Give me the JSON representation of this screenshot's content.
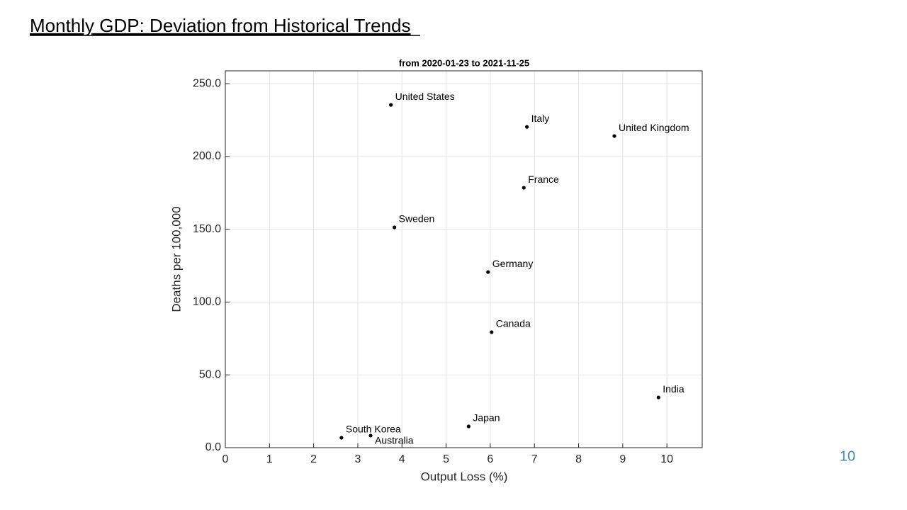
{
  "slide_title": "Monthly GDP: Deviation from Historical Trends",
  "page_number": "10",
  "chart_data": {
    "type": "scatter",
    "title": "from 2020-01-23 to 2021-11-25",
    "x_label": "Output Loss (%)",
    "y_label": "Deaths per 100,000",
    "labels": [
      "United States",
      "Italy",
      "United Kingdom",
      "France",
      "Sweden",
      "Germany",
      "Canada",
      "India",
      "Japan",
      "South Korea",
      "Australia"
    ],
    "x": [
      3.75,
      6.83,
      8.81,
      6.76,
      3.83,
      5.95,
      6.03,
      9.81,
      5.51,
      2.63,
      3.29
    ],
    "y": [
      235.4,
      220.3,
      214.0,
      178.5,
      151.3,
      120.6,
      79.3,
      34.5,
      14.6,
      6.8,
      8.3
    ],
    "color": "#000000",
    "xlim": [
      0,
      10.8
    ],
    "ylim": [
      0,
      258.8
    ],
    "xticks": [
      0,
      1,
      2,
      3,
      4,
      5,
      6,
      7,
      8,
      9,
      10
    ],
    "yticks": [
      {
        "value": 0,
        "label": "0.0"
      },
      {
        "value": 50,
        "label": "50.0"
      },
      {
        "value": 100,
        "label": "100.0"
      },
      {
        "value": 150,
        "label": "150.0"
      },
      {
        "value": 200,
        "label": "200.0"
      },
      {
        "value": 250,
        "label": "250.0"
      }
    ],
    "grid": true
  }
}
